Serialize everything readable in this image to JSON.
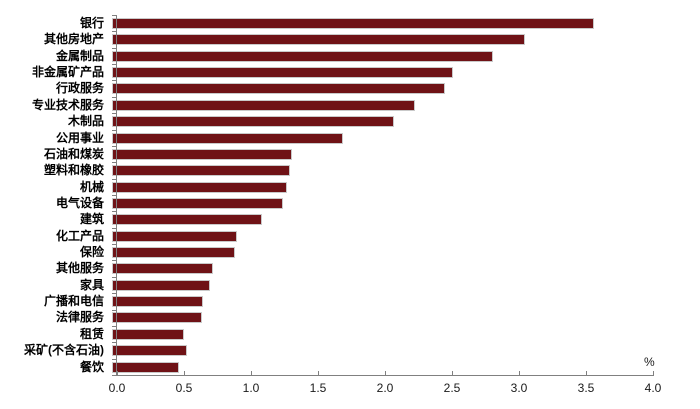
{
  "chart_data": {
    "type": "bar",
    "orientation": "horizontal",
    "title": "",
    "xlabel": "%",
    "ylabel": "",
    "xlim": [
      0.0,
      4.0
    ],
    "x_ticks": [
      "0.0",
      "0.5",
      "1.0",
      "1.5",
      "2.0",
      "2.5",
      "3.0",
      "3.5",
      "4.0"
    ],
    "grid": false,
    "legend": "none",
    "bar_color": "#6F1216",
    "categories": [
      "银行",
      "其他房地产",
      "金属制品",
      "非金属矿产品",
      "行政服务",
      "专业技术服务",
      "木制品",
      "公用事业",
      "石油和煤炭",
      "塑料和橡胶",
      "机械",
      "电气设备",
      "建筑",
      "化工产品",
      "保险",
      "其他服务",
      "家具",
      "广播和电信",
      "法律服务",
      "租赁",
      "采矿(不含石油)",
      "餐饮"
    ],
    "values": [
      3.54,
      3.03,
      2.8,
      2.5,
      2.44,
      2.22,
      2.07,
      1.69,
      1.31,
      1.3,
      1.28,
      1.25,
      1.09,
      0.91,
      0.89,
      0.73,
      0.71,
      0.66,
      0.65,
      0.52,
      0.54,
      0.48
    ]
  }
}
